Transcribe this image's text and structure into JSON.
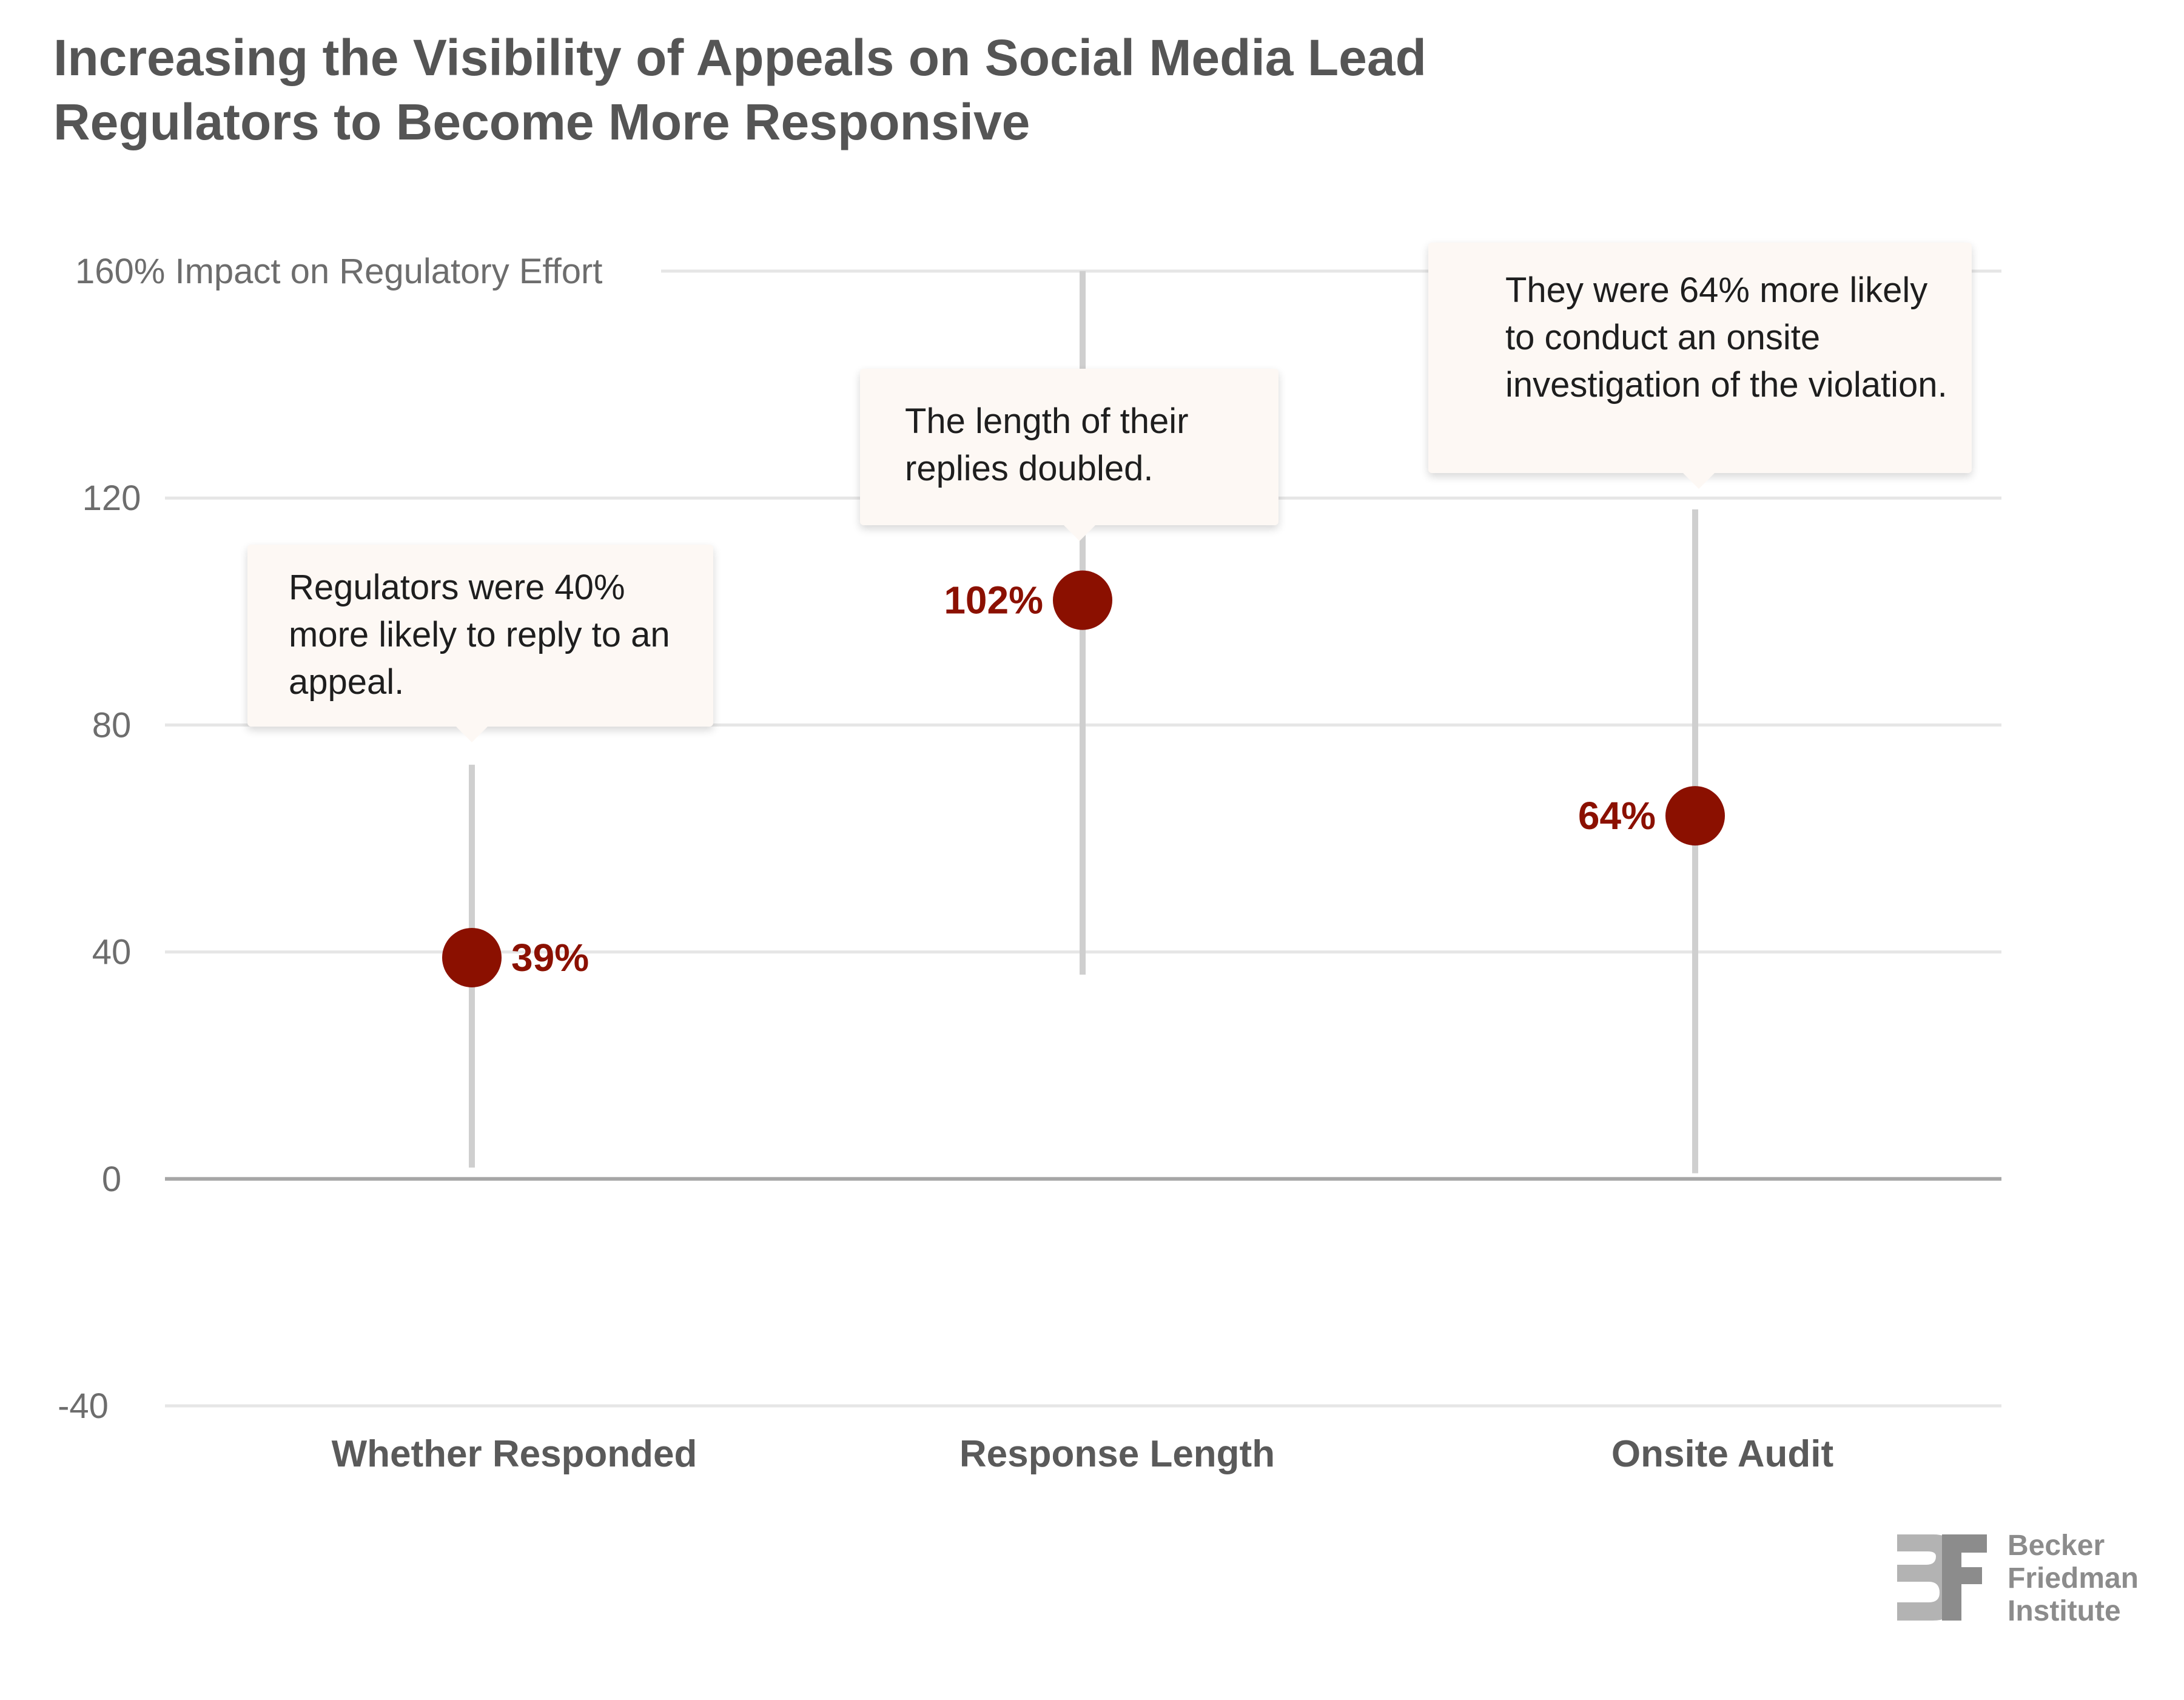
{
  "title": "Increasing the Visibility of Appeals on Social Media Lead Regulators to Become More Responsive",
  "colors": {
    "point": "#8b1000",
    "range_line": "#cfcfcf",
    "grid": "#e6e6e6",
    "baseline": "#a6a6a6"
  },
  "chart_data": {
    "type": "scatter",
    "title": "Increasing the Visibility of Appeals on Social Media Lead Regulators to Become More Responsive",
    "ylabel": "Impact on Regulatory Effort",
    "ylim": [
      -40,
      160
    ],
    "y_ticks": [
      -40,
      0,
      40,
      80,
      120,
      160
    ],
    "y_tick_labels": [
      "-40",
      "0",
      "40",
      "80",
      "120",
      "160% Impact on Regulatory Effort"
    ],
    "grid": true,
    "categories": [
      "Whether Responded",
      "Response Length",
      "Onsite Audit"
    ],
    "values": [
      39,
      102,
      64
    ],
    "value_labels": [
      "39%",
      "102%",
      "64%"
    ],
    "intervals": [
      [
        2,
        73
      ],
      [
        36,
        160
      ],
      [
        1,
        118
      ]
    ],
    "annotations": [
      "Regulators were 40% more likely to reply to an appeal.",
      "The length of their replies doubled.",
      "They were 64% more likely to conduct an onsite investigation of the violation."
    ]
  },
  "logo": {
    "lines": [
      "Becker",
      "Friedman",
      "Institute"
    ]
  }
}
